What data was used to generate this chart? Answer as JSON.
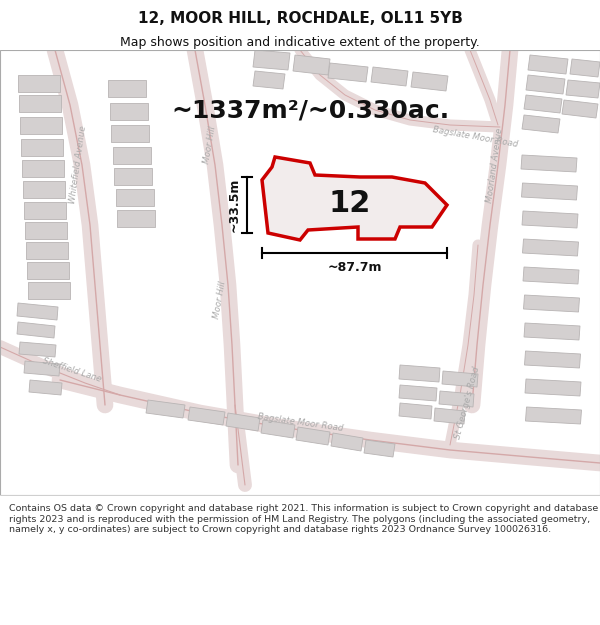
{
  "title": "12, MOOR HILL, ROCHDALE, OL11 5YB",
  "subtitle": "Map shows position and indicative extent of the property.",
  "area_text": "~1337m²/~0.330ac.",
  "property_number": "12",
  "dim_width": "~87.7m",
  "dim_height": "~33.5m",
  "footer": "Contains OS data © Crown copyright and database right 2021. This information is subject to Crown copyright and database rights 2023 and is reproduced with the permission of HM Land Registry. The polygons (including the associated geometry, namely x, y co-ordinates) are subject to Crown copyright and database rights 2023 Ordnance Survey 100026316.",
  "map_bg": "#f2f0f0",
  "road_fill": "#e8dada",
  "road_line": "#d4a8a8",
  "building_fill": "#d4d0d0",
  "building_edge": "#b8b4b4",
  "poly_fill": [
    0.88,
    0.82,
    0.82,
    0.4
  ],
  "poly_edge": "#cc0000",
  "text_color": "#111111",
  "footer_text_color": "#333333",
  "figsize": [
    6.0,
    6.25
  ],
  "dpi": 100,
  "title_fontsize": 11,
  "subtitle_fontsize": 9,
  "area_fontsize": 18,
  "propnum_fontsize": 22,
  "dim_fontsize": 9,
  "footer_fontsize": 6.8,
  "street_fontsize": 6.2,
  "street_color": "#aaaaaa"
}
